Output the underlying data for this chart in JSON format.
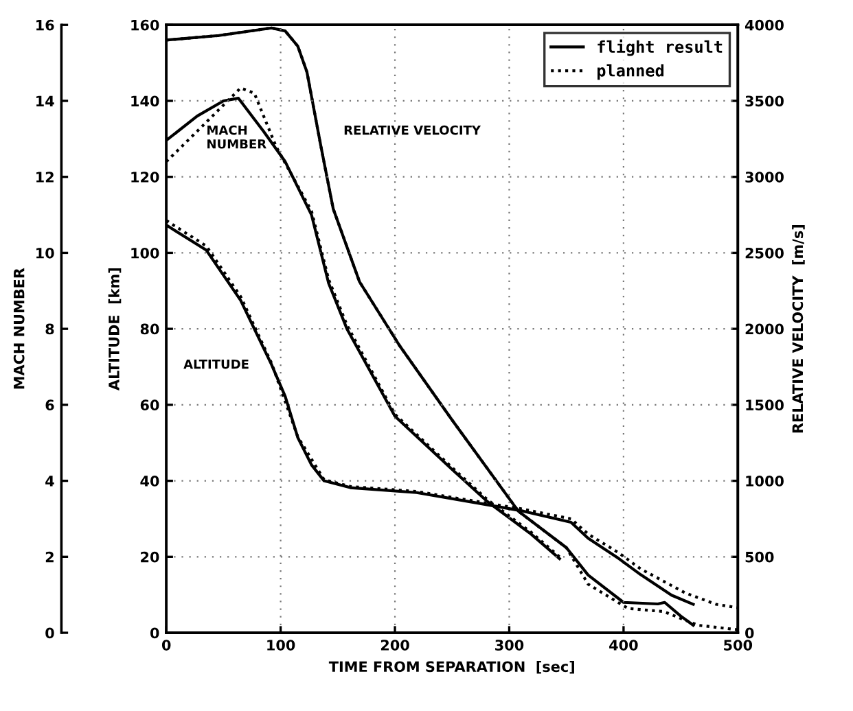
{
  "chart_data": {
    "type": "line",
    "xlabel": "TIME FROM SEPARATION  [sec]",
    "ylabel": "ALTITUDE  [km]",
    "y2label": "RELATIVE VELOCITY  [m/s]",
    "y3label": "MACH NUMBER",
    "xlim": [
      0,
      500
    ],
    "xticks": [
      0,
      100,
      200,
      300,
      400,
      500
    ],
    "ylim": [
      0,
      160
    ],
    "yticks": [
      0,
      20,
      40,
      60,
      80,
      100,
      120,
      140,
      160
    ],
    "y2lim": [
      0,
      4000
    ],
    "y2ticks": [
      0,
      500,
      1000,
      1500,
      2000,
      2500,
      3000,
      3500,
      4000
    ],
    "y3lim": [
      0,
      16
    ],
    "y3ticks": [
      0,
      2,
      4,
      6,
      8,
      10,
      12,
      14,
      16
    ],
    "grid": true,
    "legend": "top right",
    "annotations": [
      "RELATIVE VELOCITY",
      "MACH\nNUMBER",
      "ALTITUDE"
    ],
    "series": [
      {
        "name": "flight result",
        "color": "#000000",
        "line_style": "solid",
        "axis": "y",
        "x": [
          0,
          35,
          65,
          92,
          104,
          115,
          127,
          138,
          161,
          219,
          277,
          311,
          354,
          369,
          396,
          415,
          442,
          461
        ],
        "values": [
          107.3,
          100.7,
          87.5,
          70.6,
          62.2,
          51.4,
          44.2,
          40.0,
          38.2,
          36.9,
          33.9,
          32.1,
          29.1,
          24.9,
          19.5,
          15.3,
          9.9,
          7.5
        ]
      },
      {
        "name": "planned",
        "color": "#000000",
        "line_style": "dotted",
        "axis": "y",
        "x": [
          0,
          35,
          65,
          92,
          115,
          138,
          161,
          219,
          277,
          311,
          354,
          369,
          396,
          415,
          454,
          481,
          500
        ],
        "values": [
          108.5,
          101.8,
          88.5,
          71,
          51.6,
          40.3,
          38.5,
          37.2,
          34.3,
          32.6,
          30,
          26,
          21,
          16.8,
          10.5,
          7.5,
          6.6
        ]
      },
      {
        "color": "#000000",
        "line_style": "solid",
        "axis": "y3",
        "x": [
          0,
          27,
          50,
          63,
          85,
          104,
          127,
          142,
          158,
          200,
          250,
          281,
          319,
          344
        ],
        "values": [
          12.96,
          13.6,
          14.0,
          14.07,
          13.2,
          12.4,
          11.0,
          9.2,
          8.0,
          5.7,
          4.3,
          3.45,
          2.6,
          1.95
        ]
      },
      {
        "color": "#000000",
        "line_style": "dotted",
        "axis": "y3",
        "x": [
          0,
          27,
          65,
          77,
          96,
          127,
          142,
          158,
          200,
          250,
          281,
          319,
          344
        ],
        "values": [
          12.4,
          13.2,
          14.34,
          14.2,
          12.8,
          11.1,
          9.3,
          8.1,
          5.75,
          4.35,
          3.5,
          2.65,
          2.0
        ]
      },
      {
        "color": "#000000",
        "line_style": "solid",
        "axis": "y2",
        "x": [
          0,
          46,
          92,
          104,
          115,
          123,
          135,
          146,
          169,
          204,
          250,
          308,
          350,
          369,
          400,
          430,
          436,
          450,
          461
        ],
        "values": [
          3900,
          3930,
          3980,
          3960,
          3860,
          3690,
          3210,
          2790,
          2310,
          1890,
          1400,
          800,
          560,
          380,
          200,
          190,
          200,
          110,
          50
        ]
      },
      {
        "color": "#000000",
        "line_style": "dotted",
        "axis": "y2",
        "x": [
          0,
          46,
          92,
          104,
          115,
          123,
          135,
          146,
          169,
          204,
          250,
          308,
          350,
          369,
          404,
          435,
          465,
          500
        ],
        "values": [
          3900,
          3930,
          3980,
          3960,
          3860,
          3690,
          3210,
          2790,
          2310,
          1890,
          1400,
          800,
          560,
          320,
          160,
          140,
          50,
          20
        ]
      }
    ]
  }
}
